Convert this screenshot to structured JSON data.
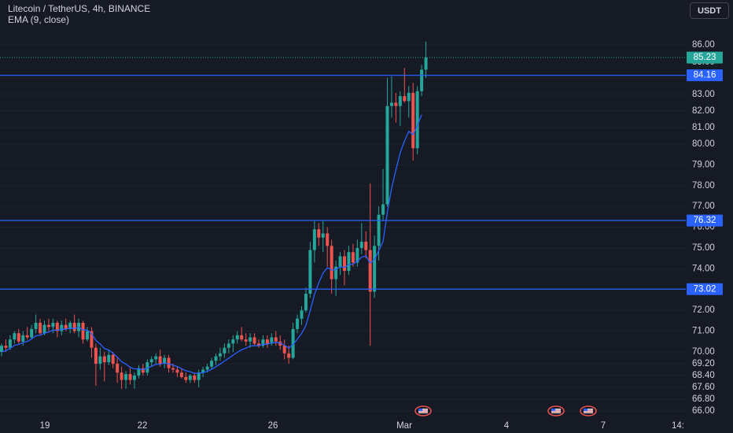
{
  "legend": {
    "symbol": "Litecoin / TetherUS, 4h, BINANCE",
    "indicator": "EMA (9, close)"
  },
  "currency_button": "USDT",
  "colors": {
    "background": "#161a25",
    "up": "#26a69a",
    "down": "#ef5350",
    "ema": "#2962ff",
    "level_line": "#2962ff",
    "axis_text": "#d1d4dc",
    "current_price_badge": "#26a69a"
  },
  "price_axis": {
    "ticks": [
      "86.00",
      "84.00",
      "83.00",
      "82.00",
      "81.00",
      "80.00",
      "79.00",
      "78.00",
      "77.00",
      "76.00",
      "75.00",
      "74.00",
      "73.00",
      "72.00",
      "71.00",
      "70.00",
      "69.20",
      "68.40",
      "67.60",
      "66.80",
      "66.00"
    ],
    "partial_label": "85.00"
  },
  "time_axis": {
    "labels": [
      "19",
      "22",
      "26",
      "Mar",
      "4",
      "7",
      "14"
    ],
    "partial_label": "14:"
  },
  "price_labels": {
    "current": "85.23",
    "levels": [
      "84.16",
      "76.32",
      "73.02"
    ]
  },
  "chart_data": {
    "type": "candlestick",
    "symbol": "Litecoin / TetherUS",
    "interval": "4h",
    "exchange": "BINANCE",
    "indicator": "EMA (9, close)",
    "horizontal_levels": [
      84.16,
      76.32,
      73.02
    ],
    "last_price": 85.23,
    "x_labels": [
      "19",
      "22",
      "26",
      "Mar",
      "4",
      "7",
      "14"
    ],
    "event_markers": 3,
    "candles": [
      {
        "o": 70.0,
        "h": 70.4,
        "l": 69.7,
        "c": 70.3
      },
      {
        "o": 70.3,
        "h": 70.6,
        "l": 70.0,
        "c": 70.2
      },
      {
        "o": 70.2,
        "h": 70.8,
        "l": 70.1,
        "c": 70.6
      },
      {
        "o": 70.6,
        "h": 71.0,
        "l": 70.4,
        "c": 70.9
      },
      {
        "o": 70.9,
        "h": 71.1,
        "l": 70.4,
        "c": 70.5
      },
      {
        "o": 70.5,
        "h": 71.0,
        "l": 70.3,
        "c": 70.8
      },
      {
        "o": 70.8,
        "h": 71.2,
        "l": 70.6,
        "c": 70.7
      },
      {
        "o": 70.7,
        "h": 71.3,
        "l": 70.6,
        "c": 71.1
      },
      {
        "o": 71.1,
        "h": 71.8,
        "l": 70.9,
        "c": 71.4
      },
      {
        "o": 71.4,
        "h": 71.6,
        "l": 70.8,
        "c": 70.9
      },
      {
        "o": 70.9,
        "h": 71.5,
        "l": 70.8,
        "c": 71.3
      },
      {
        "o": 71.3,
        "h": 71.6,
        "l": 71.0,
        "c": 71.2
      },
      {
        "o": 71.2,
        "h": 71.6,
        "l": 70.9,
        "c": 71.4
      },
      {
        "o": 71.4,
        "h": 71.5,
        "l": 70.7,
        "c": 71.0
      },
      {
        "o": 71.0,
        "h": 71.5,
        "l": 70.8,
        "c": 71.3
      },
      {
        "o": 71.3,
        "h": 71.6,
        "l": 71.0,
        "c": 71.1
      },
      {
        "o": 71.1,
        "h": 71.5,
        "l": 70.9,
        "c": 71.4
      },
      {
        "o": 71.4,
        "h": 71.8,
        "l": 70.9,
        "c": 71.0
      },
      {
        "o": 71.0,
        "h": 71.6,
        "l": 70.7,
        "c": 71.4
      },
      {
        "o": 71.4,
        "h": 71.5,
        "l": 70.4,
        "c": 70.6
      },
      {
        "o": 70.6,
        "h": 71.2,
        "l": 70.5,
        "c": 71.0
      },
      {
        "o": 71.0,
        "h": 71.2,
        "l": 69.6,
        "c": 70.2
      },
      {
        "o": 70.2,
        "h": 70.4,
        "l": 67.7,
        "c": 69.2
      },
      {
        "o": 69.2,
        "h": 70.2,
        "l": 68.8,
        "c": 69.7
      },
      {
        "o": 69.7,
        "h": 70.0,
        "l": 68.0,
        "c": 69.3
      },
      {
        "o": 69.3,
        "h": 70.1,
        "l": 69.1,
        "c": 69.8
      },
      {
        "o": 69.8,
        "h": 70.0,
        "l": 68.9,
        "c": 69.2
      },
      {
        "o": 69.2,
        "h": 69.6,
        "l": 67.9,
        "c": 68.6
      },
      {
        "o": 68.6,
        "h": 69.0,
        "l": 67.5,
        "c": 68.1
      },
      {
        "o": 68.1,
        "h": 68.7,
        "l": 67.5,
        "c": 68.5
      },
      {
        "o": 68.5,
        "h": 68.9,
        "l": 67.8,
        "c": 68.1
      },
      {
        "o": 68.1,
        "h": 68.6,
        "l": 67.5,
        "c": 68.4
      },
      {
        "o": 68.4,
        "h": 69.1,
        "l": 68.2,
        "c": 68.9
      },
      {
        "o": 68.9,
        "h": 69.2,
        "l": 68.4,
        "c": 68.6
      },
      {
        "o": 68.6,
        "h": 69.5,
        "l": 68.4,
        "c": 69.3
      },
      {
        "o": 69.3,
        "h": 69.7,
        "l": 69.0,
        "c": 69.5
      },
      {
        "o": 69.5,
        "h": 69.9,
        "l": 69.2,
        "c": 69.7
      },
      {
        "o": 69.7,
        "h": 70.1,
        "l": 69.0,
        "c": 69.2
      },
      {
        "o": 69.2,
        "h": 69.8,
        "l": 68.9,
        "c": 69.6
      },
      {
        "o": 69.6,
        "h": 69.8,
        "l": 68.6,
        "c": 68.9
      },
      {
        "o": 68.9,
        "h": 69.2,
        "l": 68.6,
        "c": 68.8
      },
      {
        "o": 68.8,
        "h": 69.0,
        "l": 68.3,
        "c": 68.6
      },
      {
        "o": 68.6,
        "h": 68.9,
        "l": 68.2,
        "c": 68.3
      },
      {
        "o": 68.3,
        "h": 68.6,
        "l": 67.9,
        "c": 68.1
      },
      {
        "o": 68.1,
        "h": 68.5,
        "l": 67.9,
        "c": 68.4
      },
      {
        "o": 68.4,
        "h": 68.6,
        "l": 67.9,
        "c": 68.1
      },
      {
        "o": 68.1,
        "h": 68.8,
        "l": 67.6,
        "c": 68.6
      },
      {
        "o": 68.6,
        "h": 69.0,
        "l": 68.3,
        "c": 68.8
      },
      {
        "o": 68.8,
        "h": 69.2,
        "l": 68.6,
        "c": 69.0
      },
      {
        "o": 69.0,
        "h": 69.6,
        "l": 68.8,
        "c": 69.4
      },
      {
        "o": 69.4,
        "h": 69.9,
        "l": 69.1,
        "c": 69.7
      },
      {
        "o": 69.7,
        "h": 70.2,
        "l": 69.4,
        "c": 69.9
      },
      {
        "o": 69.9,
        "h": 70.4,
        "l": 69.6,
        "c": 70.2
      },
      {
        "o": 70.2,
        "h": 70.6,
        "l": 69.9,
        "c": 70.4
      },
      {
        "o": 70.4,
        "h": 70.8,
        "l": 70.0,
        "c": 70.6
      },
      {
        "o": 70.6,
        "h": 71.0,
        "l": 70.4,
        "c": 70.8
      },
      {
        "o": 70.8,
        "h": 71.2,
        "l": 70.5,
        "c": 70.6
      },
      {
        "o": 70.6,
        "h": 70.9,
        "l": 70.3,
        "c": 70.5
      },
      {
        "o": 70.5,
        "h": 70.9,
        "l": 70.2,
        "c": 70.7
      },
      {
        "o": 70.7,
        "h": 70.9,
        "l": 70.3,
        "c": 70.4
      },
      {
        "o": 70.4,
        "h": 70.6,
        "l": 70.2,
        "c": 70.3
      },
      {
        "o": 70.3,
        "h": 70.8,
        "l": 70.2,
        "c": 70.6
      },
      {
        "o": 70.6,
        "h": 70.8,
        "l": 70.2,
        "c": 70.4
      },
      {
        "o": 70.4,
        "h": 70.9,
        "l": 70.3,
        "c": 70.7
      },
      {
        "o": 70.7,
        "h": 71.0,
        "l": 70.3,
        "c": 70.5
      },
      {
        "o": 70.5,
        "h": 70.8,
        "l": 70.1,
        "c": 70.3
      },
      {
        "o": 70.3,
        "h": 70.6,
        "l": 69.5,
        "c": 69.9
      },
      {
        "o": 69.9,
        "h": 70.3,
        "l": 69.2,
        "c": 69.6
      },
      {
        "o": 69.6,
        "h": 71.4,
        "l": 69.5,
        "c": 71.1
      },
      {
        "o": 71.1,
        "h": 71.8,
        "l": 70.9,
        "c": 71.6
      },
      {
        "o": 71.6,
        "h": 72.2,
        "l": 71.3,
        "c": 72.0
      },
      {
        "o": 72.0,
        "h": 73.1,
        "l": 71.9,
        "c": 72.8
      },
      {
        "o": 72.8,
        "h": 75.3,
        "l": 72.6,
        "c": 74.9
      },
      {
        "o": 74.9,
        "h": 76.3,
        "l": 74.3,
        "c": 75.9
      },
      {
        "o": 75.9,
        "h": 76.2,
        "l": 75.1,
        "c": 75.5
      },
      {
        "o": 75.5,
        "h": 76.3,
        "l": 74.8,
        "c": 75.7
      },
      {
        "o": 75.7,
        "h": 76.0,
        "l": 74.1,
        "c": 75.1
      },
      {
        "o": 75.1,
        "h": 75.4,
        "l": 72.8,
        "c": 73.5
      },
      {
        "o": 73.5,
        "h": 74.4,
        "l": 72.7,
        "c": 74.1
      },
      {
        "o": 74.1,
        "h": 74.8,
        "l": 73.7,
        "c": 74.6
      },
      {
        "o": 74.6,
        "h": 74.9,
        "l": 73.2,
        "c": 73.9
      },
      {
        "o": 73.9,
        "h": 75.1,
        "l": 73.7,
        "c": 74.8
      },
      {
        "o": 74.8,
        "h": 75.2,
        "l": 74.1,
        "c": 74.3
      },
      {
        "o": 74.3,
        "h": 75.4,
        "l": 74.1,
        "c": 75.0
      },
      {
        "o": 75.0,
        "h": 76.2,
        "l": 74.7,
        "c": 75.3
      },
      {
        "o": 75.3,
        "h": 75.8,
        "l": 74.5,
        "c": 74.9
      },
      {
        "o": 74.9,
        "h": 78.1,
        "l": 70.3,
        "c": 72.9
      },
      {
        "o": 72.9,
        "h": 75.6,
        "l": 72.6,
        "c": 75.1
      },
      {
        "o": 75.1,
        "h": 77.0,
        "l": 74.4,
        "c": 76.6
      },
      {
        "o": 76.6,
        "h": 78.8,
        "l": 76.3,
        "c": 77.1
      },
      {
        "o": 77.1,
        "h": 84.0,
        "l": 77.0,
        "c": 82.3
      },
      {
        "o": 82.3,
        "h": 84.1,
        "l": 81.6,
        "c": 82.5
      },
      {
        "o": 82.5,
        "h": 83.1,
        "l": 81.3,
        "c": 82.3
      },
      {
        "o": 82.3,
        "h": 83.2,
        "l": 81.1,
        "c": 82.9
      },
      {
        "o": 82.9,
        "h": 84.6,
        "l": 82.5,
        "c": 82.6
      },
      {
        "o": 82.6,
        "h": 83.5,
        "l": 81.6,
        "c": 83.1
      },
      {
        "o": 83.1,
        "h": 83.7,
        "l": 79.2,
        "c": 79.8
      },
      {
        "o": 79.8,
        "h": 83.5,
        "l": 79.5,
        "c": 83.2
      },
      {
        "o": 83.2,
        "h": 84.8,
        "l": 82.9,
        "c": 84.5
      },
      {
        "o": 84.5,
        "h": 86.2,
        "l": 84.0,
        "c": 85.23
      }
    ],
    "ema_values": [
      70.0,
      70.06,
      70.17,
      70.32,
      70.36,
      70.45,
      70.5,
      70.62,
      70.78,
      70.8,
      70.9,
      70.96,
      71.05,
      71.04,
      71.09,
      71.09,
      71.15,
      71.12,
      71.18,
      71.06,
      71.05,
      70.88,
      70.55,
      70.38,
      70.16,
      70.09,
      69.91,
      69.65,
      69.34,
      69.17,
      68.96,
      68.85,
      68.86,
      68.8,
      68.9,
      69.02,
      69.16,
      69.17,
      69.26,
      69.19,
      69.11,
      69.01,
      68.87,
      68.72,
      68.66,
      68.55,
      68.56,
      68.6,
      68.68,
      68.82,
      69.0,
      69.18,
      69.38,
      69.58,
      69.78,
      69.98,
      70.1,
      70.18,
      70.28,
      70.3,
      70.3,
      70.36,
      70.37,
      70.44,
      70.45,
      70.43,
      70.32,
      70.18,
      70.36,
      70.61,
      70.89,
      71.27,
      71.99,
      72.77,
      73.32,
      73.79,
      74.05,
      73.94,
      73.97,
      74.1,
      74.06,
      74.2,
      74.22,
      74.37,
      74.56,
      74.62,
      74.28,
      74.44,
      74.87,
      75.32,
      76.72,
      77.87,
      78.76,
      79.59,
      80.19,
      80.77,
      80.57,
      81.1,
      81.78
    ]
  }
}
